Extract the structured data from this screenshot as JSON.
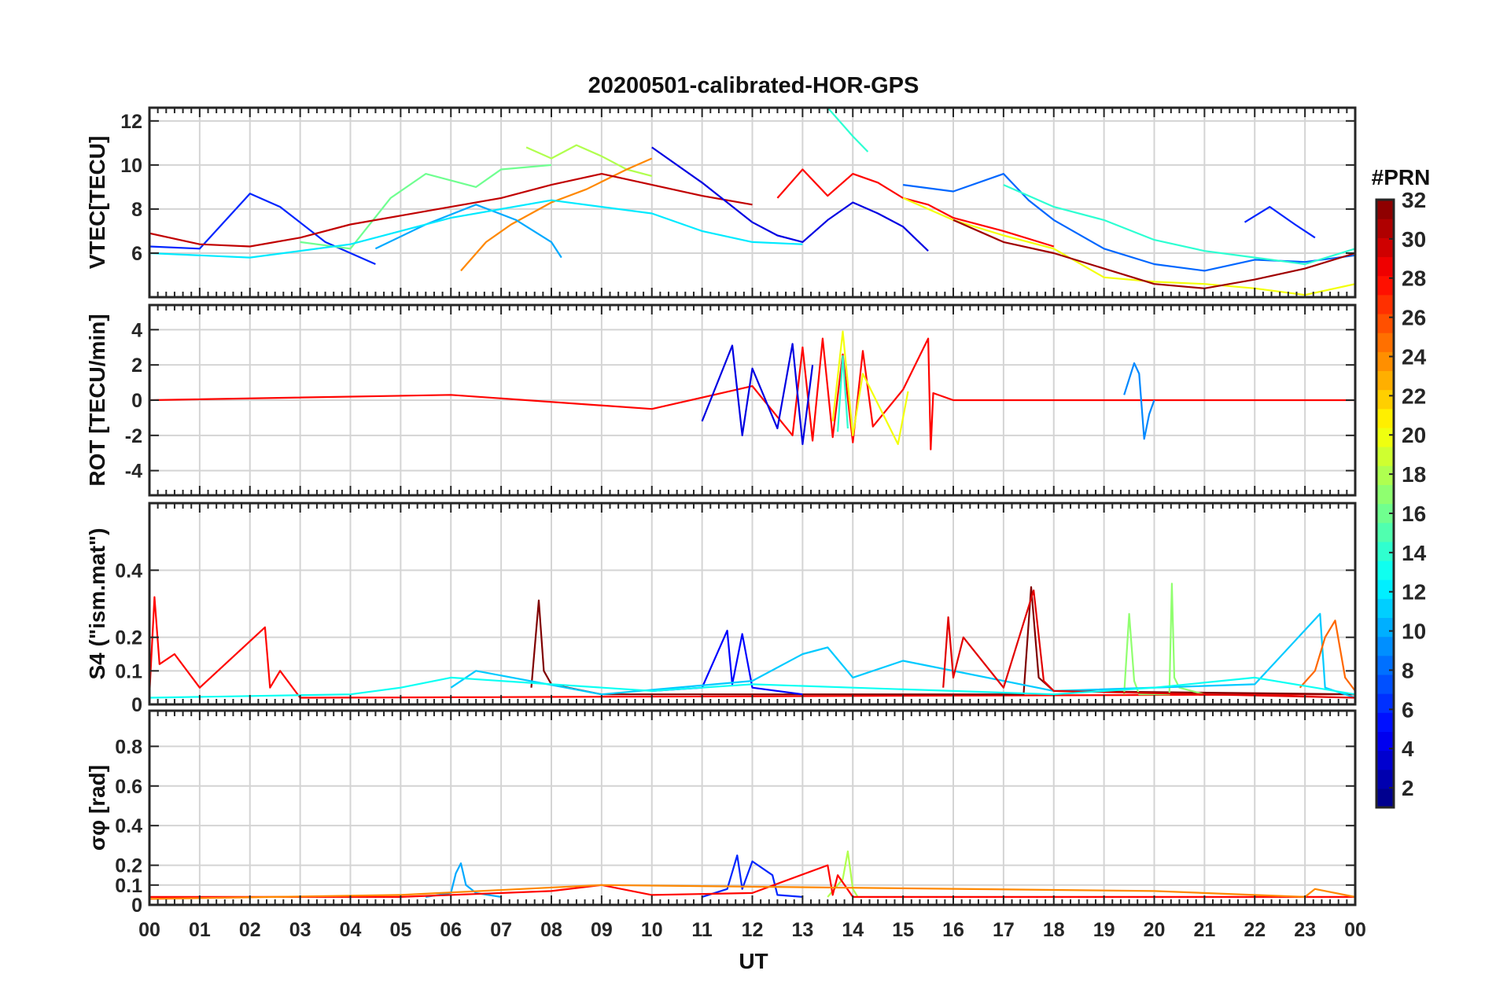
{
  "chart_data": {
    "type": "line",
    "title": "20200501-calibrated-HOR-GPS",
    "xlabel": "UT",
    "x_tick_labels": [
      "00",
      "01",
      "02",
      "03",
      "04",
      "05",
      "06",
      "07",
      "08",
      "09",
      "10",
      "11",
      "12",
      "13",
      "14",
      "15",
      "16",
      "17",
      "18",
      "19",
      "20",
      "21",
      "22",
      "23",
      "00"
    ],
    "xlim_hours": [
      0,
      24
    ],
    "grid": true,
    "colorbar": {
      "title": "#PRN",
      "colormap": "jet",
      "clim": [
        1,
        32
      ],
      "tick_values": [
        2,
        4,
        6,
        8,
        10,
        12,
        14,
        16,
        18,
        20,
        22,
        24,
        26,
        28,
        30,
        32
      ],
      "tick_labels": [
        "2",
        "4",
        "6",
        "8",
        "10",
        "12",
        "14",
        "16",
        "18",
        "20",
        "22",
        "24",
        "26",
        "28",
        "30",
        "32"
      ]
    },
    "panels": [
      {
        "id": "vtec",
        "ylabel": "VTEC[TECU]",
        "ylim": [
          4,
          12.6
        ],
        "y_ticks": [
          6,
          8,
          10,
          12
        ],
        "y_tick_labels": [
          "6",
          "8",
          "10",
          "12"
        ],
        "series": [
          {
            "prn": 6,
            "x": [
              0,
              1,
              2,
              2.6,
              3.5,
              4.5
            ],
            "y": [
              6.3,
              6.2,
              8.7,
              8.1,
              6.5,
              5.5
            ]
          },
          {
            "prn": 16,
            "x": [
              3,
              4,
              4.8,
              5.5,
              6.5,
              7,
              8
            ],
            "y": [
              6.5,
              6.2,
              8.5,
              9.6,
              9,
              9.8,
              10
            ]
          },
          {
            "prn": 18,
            "x": [
              7.5,
              8,
              8.5,
              9,
              9.5,
              10
            ],
            "y": [
              10.8,
              10.3,
              10.9,
              10.4,
              9.8,
              9.5
            ]
          },
          {
            "prn": 24,
            "x": [
              6.2,
              6.7,
              7.2,
              8,
              8.7,
              9.5,
              10
            ],
            "y": [
              5.2,
              6.5,
              7.3,
              8.3,
              8.9,
              9.8,
              10.3
            ]
          },
          {
            "prn": 10,
            "x": [
              4.5,
              5.5,
              6.5,
              7.3,
              8,
              8.2
            ],
            "y": [
              6.2,
              7.3,
              8.2,
              7.5,
              6.5,
              5.8
            ]
          },
          {
            "prn": 30,
            "x": [
              0,
              1,
              2,
              3,
              4,
              5,
              6,
              7,
              8,
              9,
              10,
              11,
              12
            ],
            "y": [
              6.9,
              6.4,
              6.3,
              6.7,
              7.3,
              7.7,
              8.1,
              8.5,
              9.1,
              9.6,
              9.1,
              8.6,
              8.2
            ]
          },
          {
            "prn": 4,
            "x": [
              10,
              11,
              12,
              12.5,
              13,
              13.5,
              14,
              14.5,
              15,
              15.5
            ],
            "y": [
              10.8,
              9.2,
              7.4,
              6.8,
              6.5,
              7.5,
              8.3,
              7.8,
              7.2,
              6.1
            ]
          },
          {
            "prn": 12,
            "x": [
              0,
              2,
              4,
              6,
              8,
              10,
              11,
              12,
              13
            ],
            "y": [
              6,
              5.8,
              6.4,
              7.6,
              8.4,
              7.8,
              7,
              6.5,
              6.4
            ]
          },
          {
            "prn": 28,
            "x": [
              12.5,
              13,
              13.5,
              14,
              14.5,
              15,
              15.5,
              16,
              17,
              18
            ],
            "y": [
              8.5,
              9.8,
              8.6,
              9.6,
              9.2,
              8.5,
              8.2,
              7.6,
              7,
              6.3
            ]
          },
          {
            "prn": 14,
            "x": [
              13.5,
              14,
              14.3
            ],
            "y": [
              12.6,
              11.3,
              10.6
            ]
          },
          {
            "prn": 8,
            "x": [
              15,
              16,
              17,
              17.5,
              18,
              19,
              20,
              21,
              22,
              23,
              24
            ],
            "y": [
              9.1,
              8.8,
              9.6,
              8.4,
              7.5,
              6.2,
              5.5,
              5.2,
              5.7,
              5.6,
              5.9
            ]
          },
          {
            "prn": 14,
            "x": [
              17,
              18,
              19,
              20,
              21,
              22,
              23,
              24
            ],
            "y": [
              9.1,
              8.1,
              7.5,
              6.6,
              6.1,
              5.8,
              5.5,
              6.2
            ]
          },
          {
            "prn": 20,
            "x": [
              15,
              16,
              17,
              18,
              19,
              20,
              21,
              22,
              23,
              24
            ],
            "y": [
              8.5,
              7.5,
              6.8,
              6.2,
              4.9,
              4.7,
              4.6,
              4.4,
              4.1,
              4.6
            ]
          },
          {
            "prn": 31,
            "x": [
              16,
              17,
              18,
              19,
              20,
              21,
              22,
              23,
              24
            ],
            "y": [
              7.5,
              6.5,
              6,
              5.3,
              4.6,
              4.4,
              4.8,
              5.3,
              6
            ]
          },
          {
            "prn": 6,
            "x": [
              21.8,
              22.3,
              22.8,
              23.2
            ],
            "y": [
              7.4,
              8.1,
              7.3,
              6.7
            ]
          }
        ]
      },
      {
        "id": "rot",
        "ylabel": "ROT [TECU/min]",
        "ylim": [
          -5.4,
          5.4
        ],
        "y_ticks": [
          -4,
          -2,
          0,
          2,
          4
        ],
        "y_tick_labels": [
          "-4",
          "-2",
          "0",
          "2",
          "4"
        ],
        "series": [
          {
            "prn": 28,
            "x": [
              0,
              6,
              10,
              12,
              12.8,
              13,
              13.2,
              13.4,
              13.6,
              13.8,
              14,
              14.2,
              14.4,
              15,
              15.5,
              15.55,
              15.6,
              16,
              24
            ],
            "y": [
              0,
              0.3,
              -0.5,
              0.8,
              -2,
              3,
              -2.3,
              3.5,
              -2.1,
              2.6,
              -2.4,
              2.8,
              -1.5,
              0.6,
              3.5,
              -2.8,
              0.4,
              0,
              0
            ]
          },
          {
            "prn": 20,
            "x": [
              13.6,
              13.8,
              14,
              14.2,
              14.9,
              15.1
            ],
            "y": [
              -1.2,
              3.9,
              -2,
              1.5,
              -2.5,
              0.5
            ]
          },
          {
            "prn": 4,
            "x": [
              11,
              11.6,
              11.8,
              12,
              12.5,
              12.8,
              13,
              13.2
            ],
            "y": [
              -1.2,
              3.1,
              -2,
              1.8,
              -1.6,
              3.2,
              -2.5,
              2
            ]
          },
          {
            "prn": 9,
            "x": [
              19.4,
              19.6,
              19.7,
              19.8,
              19.9,
              20
            ],
            "y": [
              0.3,
              2.1,
              1.5,
              -2.2,
              -0.8,
              0
            ]
          },
          {
            "prn": 14,
            "x": [
              13.7,
              13.8,
              13.9
            ],
            "y": [
              -1.8,
              2.5,
              -1.6
            ]
          }
        ]
      },
      {
        "id": "s4",
        "ylabel": "S4 (\"ism.mat\")",
        "ylim": [
          0,
          0.6
        ],
        "y_ticks": [
          0,
          0.1,
          0.2,
          0.4
        ],
        "y_tick_labels": [
          "0",
          "0.1",
          "0.2",
          "0.4"
        ],
        "series": [
          {
            "prn": 28,
            "x": [
              0,
              0.1,
              0.2,
              0.5,
              1,
              2.3,
              2.4,
              2.6,
              3,
              24
            ],
            "y": [
              0.03,
              0.32,
              0.12,
              0.15,
              0.05,
              0.23,
              0.05,
              0.1,
              0.02,
              0.03
            ]
          },
          {
            "prn": 32,
            "x": [
              7.6,
              7.75,
              7.85,
              8,
              9,
              17.4,
              17.55,
              17.7,
              18,
              24
            ],
            "y": [
              0.05,
              0.31,
              0.1,
              0.06,
              0.03,
              0.03,
              0.35,
              0.08,
              0.04,
              0.03
            ]
          },
          {
            "prn": 17,
            "x": [
              19.4,
              19.5,
              19.6,
              19.7,
              20.3,
              20.35,
              20.4,
              20.5,
              21
            ],
            "y": [
              0.03,
              0.27,
              0.07,
              0.03,
              0.03,
              0.36,
              0.08,
              0.05,
              0.03
            ]
          },
          {
            "prn": 5,
            "x": [
              10,
              11,
              11.5,
              11.6,
              11.8,
              12,
              13
            ],
            "y": [
              0.04,
              0.05,
              0.22,
              0.06,
              0.21,
              0.05,
              0.03
            ]
          },
          {
            "prn": 11,
            "x": [
              6,
              6.5,
              9,
              12,
              13,
              13.5,
              14,
              15,
              18,
              22,
              23.3,
              23.4,
              24
            ],
            "y": [
              0.05,
              0.1,
              0.03,
              0.07,
              0.15,
              0.17,
              0.08,
              0.13,
              0.04,
              0.06,
              0.27,
              0.05,
              0.02
            ]
          },
          {
            "prn": 25,
            "x": [
              22.9,
              23.2,
              23.4,
              23.6,
              23.8,
              24
            ],
            "y": [
              0.05,
              0.1,
              0.2,
              0.25,
              0.08,
              0.04
            ]
          },
          {
            "prn": 29,
            "x": [
              15.8,
              15.9,
              16,
              16.2,
              17,
              17.6,
              17.8,
              18,
              24
            ],
            "y": [
              0.05,
              0.26,
              0.08,
              0.2,
              0.05,
              0.34,
              0.07,
              0.04,
              0.02
            ]
          },
          {
            "prn": 13,
            "x": [
              0,
              4,
              5,
              6,
              8,
              10,
              12,
              14,
              16,
              18,
              20,
              22,
              24
            ],
            "y": [
              0.02,
              0.03,
              0.05,
              0.08,
              0.06,
              0.04,
              0.06,
              0.05,
              0.04,
              0.03,
              0.05,
              0.08,
              0.03
            ]
          }
        ]
      },
      {
        "id": "sigma_phi",
        "ylabel": "σφ [rad]",
        "ylim": [
          0,
          0.98
        ],
        "y_ticks": [
          0,
          0.1,
          0.2,
          0.4,
          0.6,
          0.8
        ],
        "y_tick_labels": [
          "0",
          "0.1",
          "0.2",
          "0.4",
          "0.6",
          "0.8"
        ],
        "series": [
          {
            "prn": 10,
            "x": [
              5.5,
              6,
              6.1,
              6.2,
              6.3,
              6.5,
              7
            ],
            "y": [
              0.04,
              0.06,
              0.16,
              0.21,
              0.1,
              0.06,
              0.04
            ]
          },
          {
            "prn": 6,
            "x": [
              11,
              11.5,
              11.7,
              11.8,
              12,
              12.4,
              12.5,
              13
            ],
            "y": [
              0.04,
              0.08,
              0.25,
              0.08,
              0.22,
              0.15,
              0.05,
              0.04
            ]
          },
          {
            "prn": 18,
            "x": [
              13.5,
              13.8,
              13.9,
              14,
              14.1
            ],
            "y": [
              0.04,
              0.13,
              0.27,
              0.08,
              0.04
            ]
          },
          {
            "prn": 28,
            "x": [
              0,
              5,
              8,
              9,
              10,
              12,
              13.5,
              13.6,
              13.7,
              14,
              15,
              20,
              24
            ],
            "y": [
              0.04,
              0.04,
              0.07,
              0.1,
              0.05,
              0.06,
              0.2,
              0.05,
              0.15,
              0.04,
              0.04,
              0.04,
              0.04
            ]
          },
          {
            "prn": 24,
            "x": [
              0,
              5,
              9,
              20,
              23,
              23.2,
              24
            ],
            "y": [
              0.03,
              0.05,
              0.1,
              0.07,
              0.04,
              0.08,
              0.04
            ]
          }
        ]
      }
    ]
  }
}
